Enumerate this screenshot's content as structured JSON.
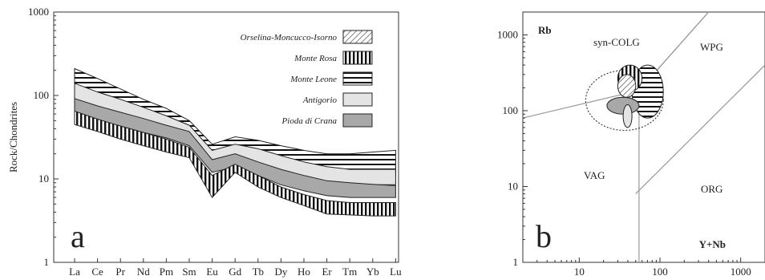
{
  "chart_data": [
    {
      "type": "area",
      "panel_label": "a",
      "ylabel": "Rock/Chondrites",
      "yscale": "log",
      "ylim": [
        1,
        1000
      ],
      "yticks": [
        "1",
        "10",
        "100",
        "1000"
      ],
      "categories": [
        "La",
        "Ce",
        "Pr",
        "Nd",
        "Pm",
        "Sm",
        "Eu",
        "Gd",
        "Tb",
        "Dy",
        "Ho",
        "Er",
        "Tm",
        "Yb",
        "Lu"
      ],
      "series": [
        {
          "name": "Orselina-Moncucco-Isorno",
          "pattern": "diagonal-hatch",
          "lower": [
            95,
            75,
            60,
            48,
            40,
            34,
            20,
            24,
            20,
            17,
            15,
            13,
            12,
            12,
            12
          ],
          "upper": [
            170,
            140,
            110,
            85,
            65,
            45,
            24,
            28,
            26,
            22,
            19,
            17,
            16,
            16,
            16
          ]
        },
        {
          "name": "Monte Rosa",
          "pattern": "vertical-lines",
          "lower": [
            45,
            37,
            30,
            25,
            21,
            18,
            6,
            12,
            8,
            6,
            4.8,
            3.8,
            3.7,
            3.6,
            3.6
          ],
          "upper": [
            65,
            52,
            43,
            36,
            30,
            24,
            11,
            15,
            11,
            8,
            6.5,
            5.5,
            5.2,
            5.2,
            5.2
          ]
        },
        {
          "name": "Monte Leone",
          "pattern": "horizontal-lines",
          "lower": [
            130,
            110,
            90,
            70,
            55,
            42,
            16,
            22,
            19,
            16,
            14,
            12,
            11,
            11,
            11
          ],
          "upper": [
            210,
            160,
            120,
            90,
            70,
            50,
            26,
            32,
            29,
            25,
            22,
            20,
            20,
            21,
            22
          ]
        },
        {
          "name": "Antigorio",
          "pattern": "light-gray",
          "lower": [
            80,
            65,
            55,
            45,
            37,
            30,
            14,
            19,
            15,
            12,
            10,
            9,
            8.5,
            8.5,
            8.5
          ],
          "upper": [
            140,
            110,
            90,
            72,
            57,
            44,
            22,
            26,
            23,
            19,
            16,
            14,
            13,
            13,
            13
          ]
        },
        {
          "name": "Pioda di Crana",
          "pattern": "dark-gray",
          "lower": [
            62,
            50,
            43,
            36,
            31,
            25,
            12,
            14,
            11,
            8.5,
            7.2,
            6.3,
            6,
            6,
            6
          ],
          "upper": [
            92,
            75,
            63,
            53,
            44,
            37,
            17,
            20,
            16,
            13,
            11,
            9.5,
            9,
            8.6,
            8.3
          ]
        }
      ]
    },
    {
      "type": "scatter",
      "panel_label": "b",
      "xlabel": "Y+Nb",
      "ylabel": "Rb",
      "xscale": "log",
      "yscale": "log",
      "xlim": [
        2,
        2000
      ],
      "ylim": [
        1,
        2000
      ],
      "xticks": [
        "10",
        "100",
        "1000"
      ],
      "yticks": [
        "1",
        "10",
        "100",
        "1000"
      ],
      "field_labels": [
        "syn-COLG",
        "WPG",
        "VAG",
        "ORG"
      ],
      "boundaries": [
        {
          "name": "VAG/syn-COLG",
          "points": [
            [
              2,
              80
            ],
            [
              55,
              185
            ],
            [
              400,
              2000
            ]
          ]
        },
        {
          "name": "syn-COLG/WPG",
          "points": [
            [
              55,
              185
            ],
            [
              400,
              2000
            ]
          ]
        },
        {
          "name": "VAG/WPG",
          "points": [
            [
              55,
              185
            ],
            [
              55,
              1
            ]
          ]
        },
        {
          "name": "WPG/ORG",
          "points": [
            [
              50,
              8
            ],
            [
              2000,
              400
            ]
          ]
        }
      ],
      "group_fields": [
        {
          "group": "Monte Leone",
          "pattern": "horizontal-lines",
          "rb_range": [
            80,
            400
          ],
          "ynb_range": [
            45,
            110
          ]
        },
        {
          "group": "Monte Rosa",
          "pattern": "vertical-lines",
          "rb_range": [
            180,
            400
          ],
          "ynb_range": [
            30,
            60
          ]
        },
        {
          "group": "Orselina-Moncucco-Isorno",
          "pattern": "diagonal-hatch",
          "rb_range": [
            150,
            300
          ],
          "ynb_range": [
            30,
            50
          ]
        },
        {
          "group": "Pioda di Crana",
          "pattern": "dark-gray",
          "rb_range": [
            90,
            150
          ],
          "ynb_range": [
            22,
            55
          ]
        },
        {
          "group": "Antigorio",
          "pattern": "light-gray",
          "rb_range": [
            60,
            120
          ],
          "ynb_range": [
            35,
            45
          ]
        },
        {
          "group": "Antigorio (dashed envelope)",
          "pattern": "dotted-outline",
          "rb_range": [
            55,
            340
          ],
          "ynb_range": [
            12,
            110
          ]
        }
      ]
    }
  ]
}
